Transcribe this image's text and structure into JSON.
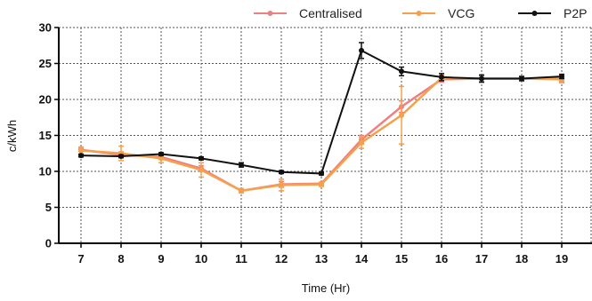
{
  "chart_data": {
    "type": "line",
    "xlabel": "Time (Hr)",
    "ylabel": "c/kWh",
    "ylim": [
      0,
      30
    ],
    "yticks": [
      0,
      5,
      10,
      15,
      20,
      25,
      30
    ],
    "categories": [
      "7",
      "8",
      "9",
      "10",
      "11",
      "12",
      "13",
      "14",
      "15",
      "16",
      "17",
      "18",
      "19"
    ],
    "grid": true,
    "legend_position": "top",
    "series": [
      {
        "name": "Centralised",
        "color": "#f07f7f",
        "values": [
          13.0,
          12.3,
          12.0,
          10.4,
          7.3,
          8.2,
          8.3,
          14.4,
          19.0,
          22.8,
          22.9,
          22.9,
          22.9
        ],
        "errors": [
          0.2,
          0.4,
          0.3,
          0.4,
          0.3,
          0.4,
          0.2,
          0.6,
          0.8,
          0.4,
          0.4,
          0.3,
          0.4
        ]
      },
      {
        "name": "VCG",
        "color": "#f5a04a",
        "values": [
          12.9,
          12.5,
          11.8,
          10.2,
          7.3,
          8.1,
          8.2,
          14.0,
          17.8,
          23.0,
          22.9,
          22.9,
          22.8
        ],
        "errors": [
          0.5,
          1.0,
          0.6,
          1.0,
          0.3,
          0.8,
          0.3,
          0.8,
          4.0,
          0.4,
          0.5,
          0.3,
          0.5
        ]
      },
      {
        "name": "P2P",
        "color": "#111111",
        "values": [
          12.2,
          12.1,
          12.4,
          11.8,
          10.9,
          9.9,
          9.7,
          26.8,
          23.9,
          23.1,
          22.9,
          22.9,
          23.2
        ],
        "errors": [
          0.2,
          0.2,
          0.2,
          0.2,
          0.3,
          0.2,
          0.2,
          1.1,
          0.6,
          0.5,
          0.5,
          0.3,
          0.3
        ]
      }
    ]
  }
}
